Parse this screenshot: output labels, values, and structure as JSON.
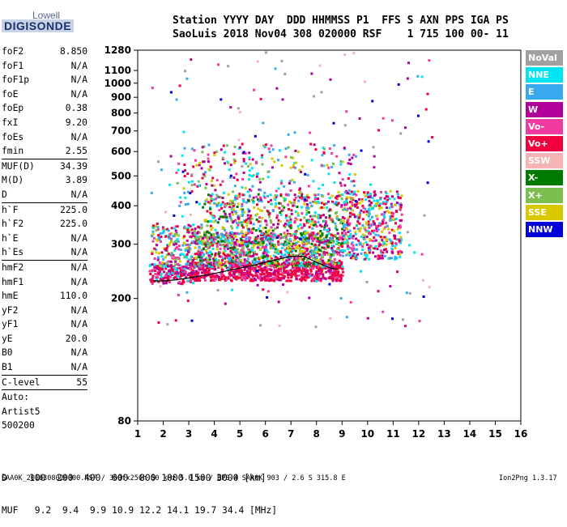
{
  "logo": {
    "top": "Lowell",
    "bottom": "DIGISONDE"
  },
  "header": {
    "line1": "Station YYYY DAY  DDD HHMMSS P1  FFS S AXN PPS IGA PS",
    "line2": "SaoLuis 2018 Nov04 308 020000 RSF    1 715 100 00- 11"
  },
  "params": [
    {
      "label": "foF2",
      "value": "8.850"
    },
    {
      "label": "foF1",
      "value": "N/A"
    },
    {
      "label": "foF1p",
      "value": "N/A"
    },
    {
      "label": "foE",
      "value": "N/A"
    },
    {
      "label": "foEp",
      "value": "0.38"
    },
    {
      "label": "fxI",
      "value": "9.20"
    },
    {
      "label": "foEs",
      "value": "N/A"
    },
    {
      "label": "fmin",
      "value": "2.55"
    },
    {
      "sep": true
    },
    {
      "label": "MUF(D)",
      "value": "34.39"
    },
    {
      "label": "M(D)",
      "value": "3.89"
    },
    {
      "label": "D",
      "value": "N/A"
    },
    {
      "sep": true
    },
    {
      "label": "h`F",
      "value": "225.0"
    },
    {
      "label": "h`F2",
      "value": "225.0"
    },
    {
      "label": "h`E",
      "value": "N/A"
    },
    {
      "label": "h`Es",
      "value": "N/A"
    },
    {
      "sep": true
    },
    {
      "label": "hmF2",
      "value": "N/A"
    },
    {
      "label": "hmF1",
      "value": "N/A"
    },
    {
      "label": "hmE",
      "value": "110.0"
    },
    {
      "label": "yF2",
      "value": "N/A"
    },
    {
      "label": "yF1",
      "value": "N/A"
    },
    {
      "label": "yE",
      "value": "20.0"
    },
    {
      "label": "B0",
      "value": "N/A"
    },
    {
      "label": "B1",
      "value": "N/A"
    },
    {
      "sep": true
    },
    {
      "label": "C-level",
      "value": "55"
    },
    {
      "sep": true
    },
    {
      "text": "Auto:"
    },
    {
      "text": "Artist5"
    },
    {
      "text": "500200"
    }
  ],
  "legend": [
    {
      "label": "NoVal",
      "color": "#a0a0a0"
    },
    {
      "label": "NNE",
      "color": "#00e5f0"
    },
    {
      "label": "E",
      "color": "#3aa8ef"
    },
    {
      "label": "W",
      "color": "#b0009a"
    },
    {
      "label": "Vo-",
      "color": "#f03aa0"
    },
    {
      "label": "Vo+",
      "color": "#f0003c"
    },
    {
      "label": "SSW",
      "color": "#f5b3b3"
    },
    {
      "label": "X-",
      "color": "#007a00"
    },
    {
      "label": "X+",
      "color": "#7cbf50"
    },
    {
      "label": "SSE",
      "color": "#d8c800"
    },
    {
      "label": "NNW",
      "color": "#0000d8"
    }
  ],
  "footer": {
    "d_row": "D    100  200  400  600  800 1000 1500 3000 [km]",
    "muf_row": "MUF   9.2  9.4  9.9 10.9 12.2 14.1 19.7 34.4 [MHz]",
    "fileline": "SAA0K_2018308020000.RSF / 300fx256h 50 kHz 5.0 km / DPS-4 SAA0K 903 / 2.6 S 315.8 E",
    "version": "Ion2Png 1.3.17"
  },
  "chart_data": {
    "type": "scatter",
    "xlim": [
      1,
      16
    ],
    "ylim": [
      80,
      1280
    ],
    "y_scale": "log",
    "x_ticks": [
      "1",
      "2",
      "3",
      "4",
      "5",
      "6",
      "7",
      "8",
      "9",
      "10",
      "11",
      "12",
      "13",
      "14",
      "15",
      "16"
    ],
    "y_ticks": [
      80,
      200,
      300,
      400,
      500,
      600,
      700,
      800,
      900,
      1000,
      1100,
      1280
    ],
    "trace": {
      "x": [
        1.6,
        2.0,
        2.5,
        3.0,
        3.5,
        4.0,
        4.5,
        5.0,
        5.5,
        6.0,
        6.5,
        7.0,
        7.5,
        8.0,
        8.5,
        8.85
      ],
      "y": [
        228,
        228,
        230,
        233,
        237,
        241,
        246,
        251,
        256,
        262,
        268,
        274,
        274,
        262,
        252,
        248
      ]
    },
    "clusters": [
      {
        "x": [
          1.4,
          3.2
        ],
        "y": [
          225,
          260
        ],
        "colors": [
          5,
          4,
          5,
          1,
          3
        ],
        "density": 170
      },
      {
        "x": [
          3.0,
          9.0
        ],
        "y": [
          230,
          265
        ],
        "colors": [
          5,
          5,
          4,
          5,
          3
        ],
        "density": 750
      },
      {
        "x": [
          1.5,
          3.5
        ],
        "y": [
          255,
          350
        ],
        "colors": [
          9,
          3,
          1,
          4,
          5,
          2,
          8
        ],
        "density": 220
      },
      {
        "x": [
          3.2,
          9.0
        ],
        "y": [
          255,
          330
        ],
        "colors": [
          9,
          3,
          5,
          4,
          2,
          7,
          8,
          1
        ],
        "density": 950
      },
      {
        "x": [
          3.5,
          9.2
        ],
        "y": [
          300,
          440
        ],
        "colors": [
          9,
          3,
          4,
          2,
          8,
          5,
          1,
          7
        ],
        "density": 600
      },
      {
        "x": [
          9.0,
          11.3
        ],
        "y": [
          270,
          450
        ],
        "colors": [
          5,
          4,
          3,
          2,
          1,
          9
        ],
        "density": 420
      },
      {
        "x": [
          2.5,
          9.5
        ],
        "y": [
          400,
          640
        ],
        "colors": [
          4,
          9,
          3,
          5,
          2,
          1,
          8
        ],
        "density": 260
      },
      {
        "x": [
          1.5,
          12.5
        ],
        "y": [
          160,
          1280
        ],
        "colors": [
          0,
          3,
          4,
          1,
          2,
          5,
          6,
          10
        ],
        "density": 190
      }
    ]
  }
}
